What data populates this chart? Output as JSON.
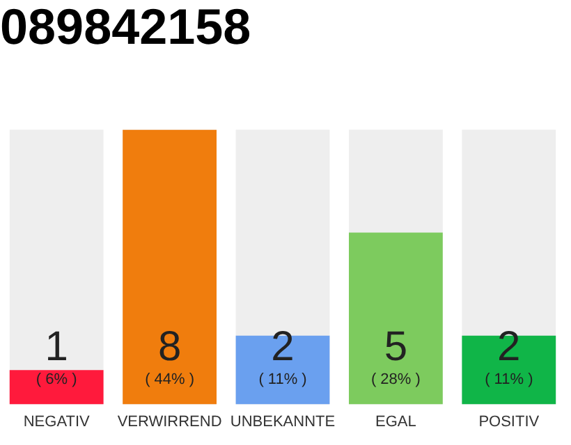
{
  "chart_data": {
    "type": "bar",
    "title": "089842158",
    "categories": [
      "NEGATIV",
      "VERWIRREND",
      "UNBEKANNTE",
      "EGAL",
      "POSITIV"
    ],
    "values": [
      1,
      8,
      2,
      5,
      2
    ],
    "colors": [
      "#ff1a3c",
      "#f07d0d",
      "#6aa0ef",
      "#7dcb5e",
      "#10b548"
    ],
    "ylim": [
      0,
      8
    ],
    "tick_labels": "x",
    "grid": false,
    "legend": false,
    "data_labels": true,
    "annotations": [
      "( 6% )",
      "( 44% )",
      "( 11% )",
      "( 28% )",
      "( 11% )"
    ]
  }
}
